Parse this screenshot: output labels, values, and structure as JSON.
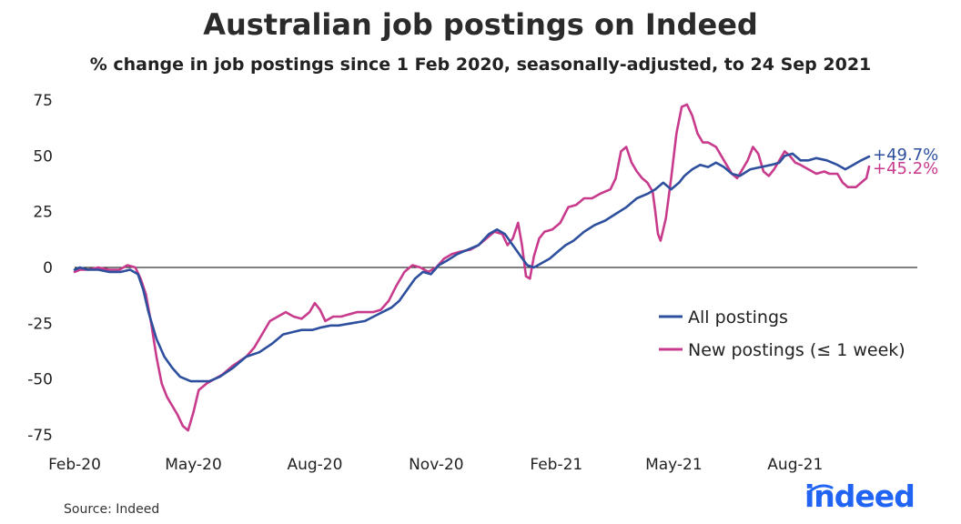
{
  "chart_data": {
    "type": "line",
    "title": "Australian job postings on Indeed",
    "subtitle": "% change in job postings since 1 Feb 2020, seasonally-adjusted, to 24 Sep 2021",
    "xlabel": "",
    "ylabel": "",
    "ylim": [
      -80,
      80
    ],
    "xlim": [
      0,
      602
    ],
    "yticks": [
      75,
      50,
      25,
      0,
      -25,
      -50,
      -75
    ],
    "ytick_labels": [
      "75",
      "50",
      "25",
      "0",
      "-25",
      "-50",
      "-75"
    ],
    "xticks": [
      0,
      90,
      182,
      274,
      365,
      454,
      546
    ],
    "xtick_labels": [
      "Feb-20",
      "May-20",
      "Aug-20",
      "Nov-20",
      "Feb-21",
      "May-21",
      "Aug-21"
    ],
    "legend_position": "center-right",
    "series": [
      {
        "name": "All postings",
        "color": "#2d4f9e",
        "end_label": "+49.7%",
        "points": [
          [
            0,
            -1
          ],
          [
            4,
            0
          ],
          [
            10,
            -1
          ],
          [
            18,
            -1
          ],
          [
            26,
            -2
          ],
          [
            35,
            -2
          ],
          [
            42,
            -1
          ],
          [
            48,
            -3
          ],
          [
            52,
            -10
          ],
          [
            56,
            -20
          ],
          [
            62,
            -32
          ],
          [
            68,
            -40
          ],
          [
            74,
            -45
          ],
          [
            80,
            -49
          ],
          [
            88,
            -51
          ],
          [
            95,
            -51
          ],
          [
            102,
            -51
          ],
          [
            110,
            -49
          ],
          [
            120,
            -45
          ],
          [
            130,
            -40
          ],
          [
            140,
            -38
          ],
          [
            150,
            -34
          ],
          [
            158,
            -30
          ],
          [
            165,
            -29
          ],
          [
            172,
            -28
          ],
          [
            180,
            -28
          ],
          [
            186,
            -27
          ],
          [
            194,
            -26
          ],
          [
            200,
            -26
          ],
          [
            210,
            -25
          ],
          [
            220,
            -24
          ],
          [
            230,
            -21
          ],
          [
            240,
            -18
          ],
          [
            246,
            -15
          ],
          [
            252,
            -10
          ],
          [
            258,
            -5
          ],
          [
            264,
            -2
          ],
          [
            270,
            -3
          ],
          [
            276,
            1
          ],
          [
            282,
            3
          ],
          [
            290,
            6
          ],
          [
            298,
            8
          ],
          [
            306,
            10
          ],
          [
            314,
            15
          ],
          [
            320,
            17
          ],
          [
            326,
            15
          ],
          [
            332,
            10
          ],
          [
            338,
            5
          ],
          [
            343,
            1
          ],
          [
            348,
            0
          ],
          [
            354,
            2
          ],
          [
            360,
            4
          ],
          [
            366,
            7
          ],
          [
            372,
            10
          ],
          [
            378,
            12
          ],
          [
            386,
            16
          ],
          [
            394,
            19
          ],
          [
            402,
            21
          ],
          [
            410,
            24
          ],
          [
            418,
            27
          ],
          [
            426,
            31
          ],
          [
            434,
            33
          ],
          [
            440,
            35
          ],
          [
            446,
            38
          ],
          [
            452,
            35
          ],
          [
            458,
            38
          ],
          [
            462,
            41
          ],
          [
            468,
            44
          ],
          [
            474,
            46
          ],
          [
            480,
            45
          ],
          [
            486,
            47
          ],
          [
            492,
            45
          ],
          [
            498,
            42
          ],
          [
            504,
            41
          ],
          [
            512,
            44
          ],
          [
            520,
            45
          ],
          [
            528,
            46
          ],
          [
            534,
            47
          ],
          [
            538,
            50
          ],
          [
            544,
            51
          ],
          [
            550,
            48
          ],
          [
            556,
            48
          ],
          [
            562,
            49
          ],
          [
            570,
            48
          ],
          [
            578,
            46
          ],
          [
            584,
            44
          ],
          [
            590,
            46
          ],
          [
            596,
            48
          ],
          [
            602,
            49.7
          ]
        ]
      },
      {
        "name": "New postings (≤ 1 week)",
        "color": "#c83b8c",
        "end_label": "+45.2%",
        "points": [
          [
            0,
            -2
          ],
          [
            4,
            -1
          ],
          [
            10,
            -1
          ],
          [
            18,
            0
          ],
          [
            26,
            -1
          ],
          [
            34,
            -1
          ],
          [
            40,
            1
          ],
          [
            46,
            0
          ],
          [
            50,
            -5
          ],
          [
            54,
            -12
          ],
          [
            58,
            -25
          ],
          [
            62,
            -40
          ],
          [
            66,
            -52
          ],
          [
            70,
            -58
          ],
          [
            74,
            -62
          ],
          [
            78,
            -66
          ],
          [
            82,
            -71
          ],
          [
            86,
            -73
          ],
          [
            90,
            -65
          ],
          [
            94,
            -55
          ],
          [
            100,
            -52
          ],
          [
            106,
            -50
          ],
          [
            112,
            -48
          ],
          [
            120,
            -44
          ],
          [
            130,
            -40
          ],
          [
            136,
            -36
          ],
          [
            142,
            -30
          ],
          [
            148,
            -24
          ],
          [
            154,
            -22
          ],
          [
            160,
            -20
          ],
          [
            166,
            -22
          ],
          [
            172,
            -23
          ],
          [
            178,
            -20
          ],
          [
            182,
            -16
          ],
          [
            186,
            -19
          ],
          [
            190,
            -24
          ],
          [
            196,
            -22
          ],
          [
            202,
            -22
          ],
          [
            208,
            -21
          ],
          [
            214,
            -20
          ],
          [
            220,
            -20
          ],
          [
            226,
            -20
          ],
          [
            232,
            -19
          ],
          [
            238,
            -15
          ],
          [
            244,
            -8
          ],
          [
            250,
            -2
          ],
          [
            256,
            1
          ],
          [
            262,
            0
          ],
          [
            268,
            -2
          ],
          [
            274,
            0
          ],
          [
            280,
            4
          ],
          [
            286,
            6
          ],
          [
            292,
            7
          ],
          [
            300,
            8
          ],
          [
            306,
            10
          ],
          [
            312,
            13
          ],
          [
            318,
            16
          ],
          [
            324,
            15
          ],
          [
            328,
            10
          ],
          [
            332,
            13
          ],
          [
            336,
            20
          ],
          [
            339,
            10
          ],
          [
            342,
            -4
          ],
          [
            345,
            -5
          ],
          [
            348,
            5
          ],
          [
            352,
            13
          ],
          [
            356,
            16
          ],
          [
            362,
            17
          ],
          [
            368,
            20
          ],
          [
            374,
            27
          ],
          [
            380,
            28
          ],
          [
            386,
            31
          ],
          [
            392,
            31
          ],
          [
            398,
            33
          ],
          [
            406,
            35
          ],
          [
            410,
            40
          ],
          [
            414,
            52
          ],
          [
            418,
            54
          ],
          [
            422,
            47
          ],
          [
            426,
            43
          ],
          [
            430,
            40
          ],
          [
            434,
            38
          ],
          [
            438,
            34
          ],
          [
            440,
            25
          ],
          [
            442,
            15
          ],
          [
            444,
            12
          ],
          [
            448,
            22
          ],
          [
            452,
            40
          ],
          [
            456,
            60
          ],
          [
            460,
            72
          ],
          [
            464,
            73
          ],
          [
            468,
            68
          ],
          [
            472,
            60
          ],
          [
            476,
            56
          ],
          [
            480,
            56
          ],
          [
            486,
            54
          ],
          [
            492,
            48
          ],
          [
            498,
            42
          ],
          [
            502,
            40
          ],
          [
            506,
            44
          ],
          [
            510,
            48
          ],
          [
            514,
            54
          ],
          [
            518,
            51
          ],
          [
            522,
            43
          ],
          [
            526,
            41
          ],
          [
            530,
            44
          ],
          [
            534,
            48
          ],
          [
            538,
            52
          ],
          [
            542,
            50
          ],
          [
            546,
            47
          ],
          [
            550,
            46
          ],
          [
            556,
            44
          ],
          [
            562,
            42
          ],
          [
            568,
            43
          ],
          [
            572,
            42
          ],
          [
            578,
            42
          ],
          [
            582,
            38
          ],
          [
            586,
            36
          ],
          [
            592,
            36
          ],
          [
            596,
            38
          ],
          [
            600,
            40
          ],
          [
            602,
            45.2
          ]
        ]
      }
    ]
  },
  "source_text": "Source: Indeed",
  "logo_text": "indeed"
}
